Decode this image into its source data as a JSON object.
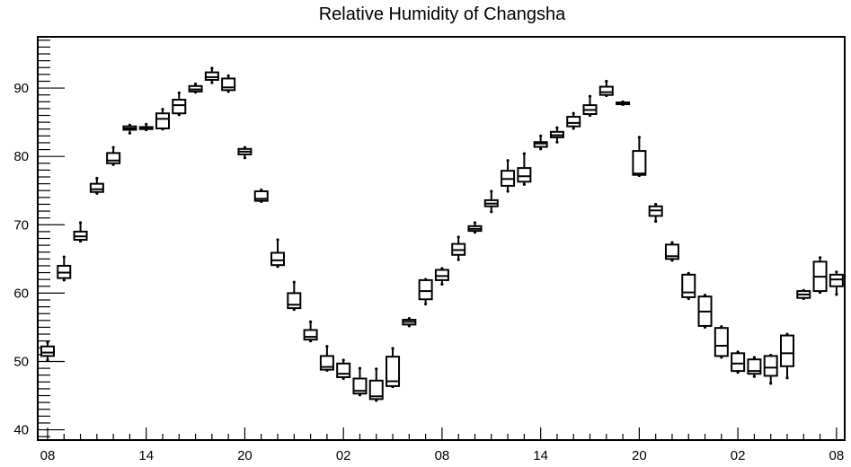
{
  "chart_data": {
    "type": "box",
    "title": "Relative Humidity of Changsha",
    "xlabel": "",
    "ylabel": "",
    "ylim": [
      38.5,
      97.5
    ],
    "xlim": [
      -0.6,
      48.5
    ],
    "y_ticks": [
      "40",
      "50",
      "60",
      "70",
      "80",
      "90"
    ],
    "x_ticks": [
      {
        "label": "08",
        "x": 0
      },
      {
        "label": "14",
        "x": 6
      },
      {
        "label": "20",
        "x": 12
      },
      {
        "label": "02",
        "x": 18
      },
      {
        "label": "08",
        "x": 24
      },
      {
        "label": "14",
        "x": 30
      },
      {
        "label": "20",
        "x": 36
      },
      {
        "label": "02",
        "x": 42
      },
      {
        "label": "08",
        "x": 48
      }
    ],
    "boxes": [
      {
        "x": 0,
        "q1": 50.8,
        "med": 51.3,
        "q3": 52.2,
        "min": 50.2,
        "max": 52.8
      },
      {
        "x": 1,
        "q1": 62.2,
        "med": 63.0,
        "q3": 64.0,
        "min": 61.9,
        "max": 65.3
      },
      {
        "x": 2,
        "q1": 67.8,
        "med": 68.3,
        "q3": 69.0,
        "min": 67.6,
        "max": 70.3
      },
      {
        "x": 3,
        "q1": 74.8,
        "med": 75.2,
        "q3": 76.0,
        "min": 74.6,
        "max": 76.8
      },
      {
        "x": 4,
        "q1": 79.0,
        "med": 79.4,
        "q3": 80.5,
        "min": 78.8,
        "max": 81.3
      },
      {
        "x": 5,
        "q1": 83.9,
        "med": 84.1,
        "q3": 84.4,
        "min": 83.4,
        "max": 84.6
      },
      {
        "x": 6,
        "q1": 84.0,
        "med": 84.1,
        "q3": 84.3,
        "min": 83.9,
        "max": 84.7
      },
      {
        "x": 7,
        "q1": 84.1,
        "med": 85.5,
        "q3": 86.3,
        "min": 84.0,
        "max": 86.9
      },
      {
        "x": 8,
        "q1": 86.3,
        "med": 87.5,
        "q3": 88.3,
        "min": 86.1,
        "max": 89.3
      },
      {
        "x": 9,
        "q1": 89.5,
        "med": 89.8,
        "q3": 90.3,
        "min": 89.4,
        "max": 90.6
      },
      {
        "x": 10,
        "q1": 91.2,
        "med": 91.6,
        "q3": 92.3,
        "min": 90.8,
        "max": 92.9
      },
      {
        "x": 11,
        "q1": 89.7,
        "med": 90.1,
        "q3": 91.4,
        "min": 89.5,
        "max": 91.8
      },
      {
        "x": 12,
        "q1": 80.3,
        "med": 80.7,
        "q3": 81.1,
        "min": 79.8,
        "max": 81.3
      },
      {
        "x": 13,
        "q1": 73.5,
        "med": 73.8,
        "q3": 74.9,
        "min": 73.4,
        "max": 75.1
      },
      {
        "x": 14,
        "q1": 64.1,
        "med": 64.8,
        "q3": 65.9,
        "min": 63.9,
        "max": 67.8
      },
      {
        "x": 15,
        "q1": 57.8,
        "med": 58.3,
        "q3": 60.0,
        "min": 57.6,
        "max": 61.6
      },
      {
        "x": 16,
        "q1": 53.2,
        "med": 53.6,
        "q3": 54.6,
        "min": 53.0,
        "max": 55.8
      },
      {
        "x": 17,
        "q1": 48.8,
        "med": 49.2,
        "q3": 50.8,
        "min": 48.7,
        "max": 52.2
      },
      {
        "x": 18,
        "q1": 47.7,
        "med": 48.2,
        "q3": 49.7,
        "min": 47.5,
        "max": 50.2
      },
      {
        "x": 19,
        "q1": 45.3,
        "med": 45.7,
        "q3": 47.5,
        "min": 45.1,
        "max": 49.0
      },
      {
        "x": 20,
        "q1": 44.5,
        "med": 44.9,
        "q3": 47.2,
        "min": 44.3,
        "max": 48.9
      },
      {
        "x": 21,
        "q1": 46.4,
        "med": 47.1,
        "q3": 50.7,
        "min": 46.3,
        "max": 51.9
      },
      {
        "x": 22,
        "q1": 55.4,
        "med": 55.8,
        "q3": 56.1,
        "min": 55.2,
        "max": 56.3
      },
      {
        "x": 23,
        "q1": 59.1,
        "med": 60.3,
        "q3": 61.9,
        "min": 58.4,
        "max": 62.0
      },
      {
        "x": 24,
        "q1": 61.9,
        "med": 62.5,
        "q3": 63.4,
        "min": 61.3,
        "max": 63.6
      },
      {
        "x": 25,
        "q1": 65.6,
        "med": 66.3,
        "q3": 67.2,
        "min": 64.9,
        "max": 68.2
      },
      {
        "x": 26,
        "q1": 69.1,
        "med": 69.4,
        "q3": 69.8,
        "min": 68.9,
        "max": 70.3
      },
      {
        "x": 27,
        "q1": 72.7,
        "med": 73.1,
        "q3": 73.6,
        "min": 71.9,
        "max": 74.9
      },
      {
        "x": 28,
        "q1": 75.7,
        "med": 76.7,
        "q3": 77.9,
        "min": 74.9,
        "max": 79.4
      },
      {
        "x": 29,
        "q1": 76.3,
        "med": 77.1,
        "q3": 78.3,
        "min": 75.9,
        "max": 80.4
      },
      {
        "x": 30,
        "q1": 81.4,
        "med": 81.9,
        "q3": 82.1,
        "min": 81.1,
        "max": 83.0
      },
      {
        "x": 31,
        "q1": 82.8,
        "med": 83.1,
        "q3": 83.6,
        "min": 82.1,
        "max": 84.2
      },
      {
        "x": 32,
        "q1": 84.4,
        "med": 84.9,
        "q3": 85.8,
        "min": 84.1,
        "max": 86.3
      },
      {
        "x": 33,
        "q1": 86.2,
        "med": 86.8,
        "q3": 87.5,
        "min": 86.0,
        "max": 88.8
      },
      {
        "x": 34,
        "q1": 89.0,
        "med": 89.4,
        "q3": 90.2,
        "min": 88.9,
        "max": 91.0
      },
      {
        "x": 35,
        "q1": 87.7,
        "med": 87.8,
        "q3": 87.9,
        "min": 87.6,
        "max": 88.0
      },
      {
        "x": 36,
        "q1": 77.3,
        "med": 77.5,
        "q3": 80.8,
        "min": 77.2,
        "max": 82.8
      },
      {
        "x": 37,
        "q1": 71.3,
        "med": 72.1,
        "q3": 72.7,
        "min": 70.5,
        "max": 73.0
      },
      {
        "x": 38,
        "q1": 65.0,
        "med": 65.4,
        "q3": 67.1,
        "min": 64.8,
        "max": 67.4
      },
      {
        "x": 39,
        "q1": 59.4,
        "med": 60.1,
        "q3": 62.7,
        "min": 59.2,
        "max": 62.9
      },
      {
        "x": 40,
        "q1": 55.2,
        "med": 57.3,
        "q3": 59.5,
        "min": 55.0,
        "max": 59.7
      },
      {
        "x": 41,
        "q1": 50.8,
        "med": 52.3,
        "q3": 54.9,
        "min": 50.6,
        "max": 55.1
      },
      {
        "x": 42,
        "q1": 48.6,
        "med": 49.7,
        "q3": 51.2,
        "min": 48.4,
        "max": 51.4
      },
      {
        "x": 43,
        "q1": 48.2,
        "med": 48.6,
        "q3": 50.3,
        "min": 47.8,
        "max": 50.6
      },
      {
        "x": 44,
        "q1": 47.9,
        "med": 49.1,
        "q3": 50.8,
        "min": 46.8,
        "max": 50.9
      },
      {
        "x": 45,
        "q1": 49.3,
        "med": 51.2,
        "q3": 53.8,
        "min": 47.6,
        "max": 54.0
      },
      {
        "x": 46,
        "q1": 59.3,
        "med": 59.8,
        "q3": 60.3,
        "min": 59.2,
        "max": 60.4
      },
      {
        "x": 47,
        "q1": 60.3,
        "med": 62.4,
        "q3": 64.6,
        "min": 60.1,
        "max": 65.2
      },
      {
        "x": 48,
        "q1": 61.0,
        "med": 62.0,
        "q3": 62.7,
        "min": 59.8,
        "max": 63.1
      }
    ]
  }
}
